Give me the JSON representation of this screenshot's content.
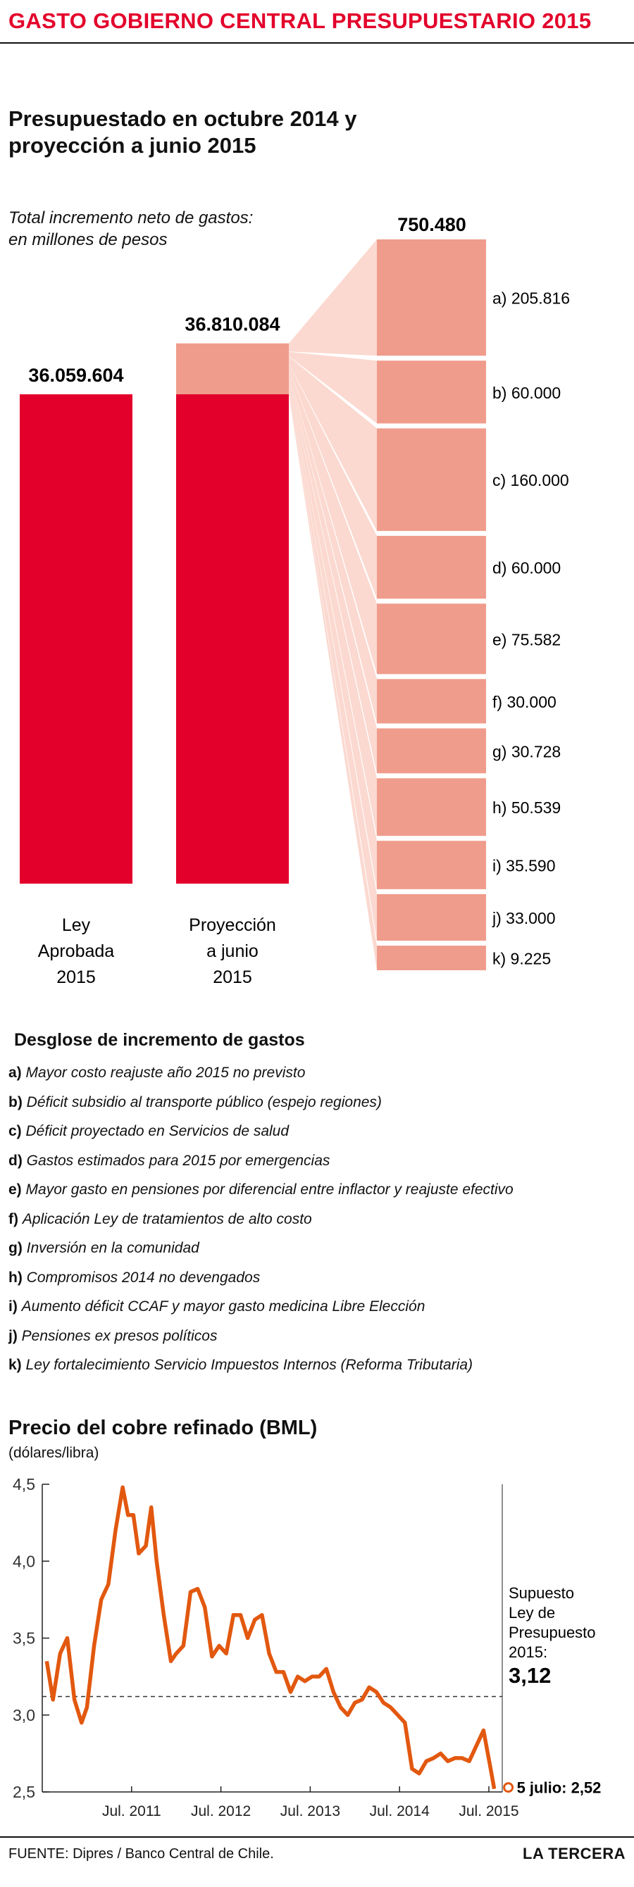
{
  "header": {
    "title": "GASTO GOBIERNO CENTRAL PRESUPUESTARIO 2015",
    "subtitle_line1": "Presupuestado en octubre 2014 y",
    "subtitle_line2": "proyección a junio 2015"
  },
  "colors": {
    "accent": "#e3002b",
    "increment": "#f09c8c",
    "connector": "#fbd9d0",
    "line": "#e2580f"
  },
  "chart_data": [
    {
      "type": "bar",
      "title": "Total incremento neto de gastos:",
      "subtitle": "en millones de pesos",
      "categories": [
        "Ley Aprobada 2015",
        "Proyección a junio 2015"
      ],
      "category_lines": [
        [
          "Ley",
          "Aprobada",
          "2015"
        ],
        [
          "Proyección",
          "a junio",
          "2015"
        ]
      ],
      "values": [
        36059604,
        36810084
      ],
      "value_labels": [
        "36.059.604",
        "36.810.084"
      ],
      "increment": 750480,
      "increment_label": "750.480",
      "breakdown": [
        {
          "key": "a",
          "label": "a) 205.816",
          "value": 205816
        },
        {
          "key": "b",
          "label": "b) 60.000",
          "value": 60000
        },
        {
          "key": "c",
          "label": "c) 160.000",
          "value": 160000
        },
        {
          "key": "d",
          "label": "d) 60.000",
          "value": 60000
        },
        {
          "key": "e",
          "label": "e) 75.582",
          "value": 75582
        },
        {
          "key": "f",
          "label": "f) 30.000",
          "value": 30000
        },
        {
          "key": "g",
          "label": "g) 30.728",
          "value": 30728
        },
        {
          "key": "h",
          "label": "h) 50.539",
          "value": 50539
        },
        {
          "key": "i",
          "label": "i) 35.590",
          "value": 35590
        },
        {
          "key": "j",
          "label": "j) 33.000",
          "value": 33000
        },
        {
          "key": "k",
          "label": "k) 9.225",
          "value": 9225
        }
      ]
    },
    {
      "type": "line",
      "title": "Precio del cobre refinado (BML)",
      "ylabel": "(dólares/libra)",
      "ylim": [
        2.5,
        4.5
      ],
      "yticks": [
        "2,5",
        "3,0",
        "3,5",
        "4,0",
        "4,5"
      ],
      "ytick_values": [
        2.5,
        3.0,
        3.5,
        4.0,
        4.5
      ],
      "xticks": [
        "Jul.  2011",
        "Jul. 2012",
        "Jul. 2013",
        "Jul. 2014",
        "Jul. 2015"
      ],
      "xlim": [
        2010.5,
        2015.65
      ],
      "xtick_values": [
        2011.5,
        2012.5,
        2013.5,
        2014.5,
        2015.5
      ],
      "grid": false,
      "x": [
        2010.55,
        2010.62,
        2010.7,
        2010.78,
        2010.86,
        2010.94,
        2011.0,
        2011.08,
        2011.16,
        2011.24,
        2011.32,
        2011.4,
        2011.46,
        2011.52,
        2011.58,
        2011.66,
        2011.72,
        2011.78,
        2011.86,
        2011.94,
        2012.0,
        2012.08,
        2012.16,
        2012.24,
        2012.32,
        2012.4,
        2012.48,
        2012.56,
        2012.64,
        2012.72,
        2012.8,
        2012.88,
        2012.96,
        2013.04,
        2013.12,
        2013.2,
        2013.28,
        2013.36,
        2013.44,
        2013.52,
        2013.6,
        2013.68,
        2013.76,
        2013.84,
        2013.92,
        2014.0,
        2014.08,
        2014.16,
        2014.24,
        2014.32,
        2014.4,
        2014.48,
        2014.56,
        2014.64,
        2014.72,
        2014.8,
        2014.88,
        2014.96,
        2015.04,
        2015.12,
        2015.2,
        2015.28,
        2015.36,
        2015.44,
        2015.52,
        2015.56
      ],
      "y": [
        3.35,
        3.1,
        3.4,
        3.5,
        3.1,
        2.95,
        3.05,
        3.45,
        3.75,
        3.85,
        4.2,
        4.48,
        4.3,
        4.3,
        4.05,
        4.1,
        4.35,
        4.0,
        3.65,
        3.35,
        3.4,
        3.45,
        3.8,
        3.82,
        3.7,
        3.38,
        3.45,
        3.4,
        3.65,
        3.65,
        3.5,
        3.62,
        3.65,
        3.4,
        3.28,
        3.28,
        3.15,
        3.25,
        3.22,
        3.25,
        3.25,
        3.3,
        3.15,
        3.05,
        3.0,
        3.08,
        3.1,
        3.18,
        3.15,
        3.08,
        3.05,
        3.0,
        2.95,
        2.65,
        2.62,
        2.7,
        2.72,
        2.75,
        2.7,
        2.72,
        2.72,
        2.7,
        2.8,
        2.9,
        2.65,
        2.52
      ],
      "reference_line": 3.12,
      "annotation_lines": [
        "Supuesto",
        "Ley de",
        "Presupuesto",
        "2015:"
      ],
      "annotation_value": "3,12",
      "last_point_label": "5 julio: 2,52"
    }
  ],
  "breakdown_section": {
    "title": "Desglose de incremento de gastos",
    "items": [
      {
        "key": "a)",
        "text": "Mayor costo reajuste año 2015 no previsto"
      },
      {
        "key": "b)",
        "text": "Déficit subsidio al transporte público (espejo regiones)"
      },
      {
        "key": "c)",
        "text": "Déficit proyectado en Servicios de salud"
      },
      {
        "key": "d)",
        "text": "Gastos estimados para 2015 por emergencias"
      },
      {
        "key": "e)",
        "text": "Mayor gasto en pensiones por diferencial entre inflactor y reajuste efectivo"
      },
      {
        "key": "f)",
        "text": "Aplicación Ley de tratamientos de alto costo"
      },
      {
        "key": "g)",
        "text": "Inversión en la comunidad"
      },
      {
        "key": "h)",
        "text": "Compromisos 2014 no devengados"
      },
      {
        "key": "i)",
        "text": "Aumento déficit CCAF y mayor gasto medicina Libre Elección"
      },
      {
        "key": "j)",
        "text": "Pensiones ex presos políticos"
      },
      {
        "key": "k)",
        "text": "Ley fortalecimiento Servicio Impuestos Internos (Reforma Tributaria)"
      }
    ]
  },
  "footer": {
    "source": "FUENTE: Dipres / Banco Central de Chile.",
    "brand": "LA TERCERA"
  }
}
